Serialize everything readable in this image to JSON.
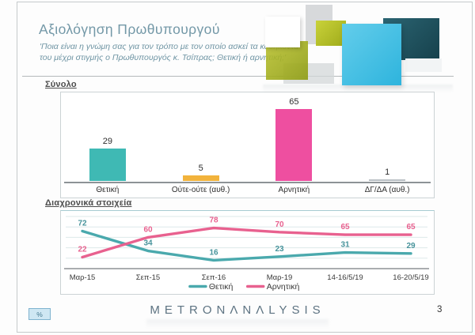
{
  "header": {
    "title": "Αξιολόγηση Πρωθυπουργού",
    "subtitle": "'Ποια είναι η γνώμη σας για τον τρόπο με τον οποίο ασκεί τα καθήκοντά του μέχρι στιγμής ο Πρωθυπουργός κ. Τσίπρας; Θετική ή αρνητική;'"
  },
  "palette": {
    "positive_teal": "#3fb9b4",
    "neutral_yellow": "#f2b33c",
    "negative_pink": "#ee4fa0",
    "dkda_gray": "#b9bfc4",
    "line_teal": "#4aa9ad",
    "line_pink": "#e8618f"
  },
  "chart_data": [
    {
      "type": "bar",
      "title": "Σύνολο",
      "categories": [
        "Θετική",
        "Ούτε-ούτε (αυθ.)",
        "Αρνητική",
        "ΔΓ/ΔΑ (αυθ.)"
      ],
      "values": [
        29,
        5,
        65,
        1
      ],
      "bar_colors": [
        "#3fb9b4",
        "#f2b33c",
        "#ee4fa0",
        "#b9bfc4"
      ],
      "ylim": [
        0,
        80
      ],
      "grid": false,
      "xlabel": "",
      "ylabel": ""
    },
    {
      "type": "line",
      "title": "Διαχρονικά στοιχεία",
      "categories": [
        "Μαρ-15",
        "Σεπ-15",
        "Σεπ-16",
        "Μαρ-19",
        "14-16/5/19",
        "16-20/5/19"
      ],
      "series": [
        {
          "name": "Θετική",
          "values": [
            72,
            34,
            16,
            23,
            31,
            29
          ],
          "color": "#4aa9ad",
          "label_color": "#47939b"
        },
        {
          "name": "Αρνητική",
          "values": [
            22,
            60,
            78,
            70,
            65,
            65
          ],
          "color": "#e8618f",
          "label_color": "#e8618f"
        }
      ],
      "ylim": [
        0,
        100
      ],
      "grid": true,
      "legend_position": "bottom",
      "xlabel": "",
      "ylabel": ""
    }
  ],
  "footer": {
    "badge": "%",
    "logo": "METRONΛNΛLYSIS",
    "page_number": "3"
  }
}
